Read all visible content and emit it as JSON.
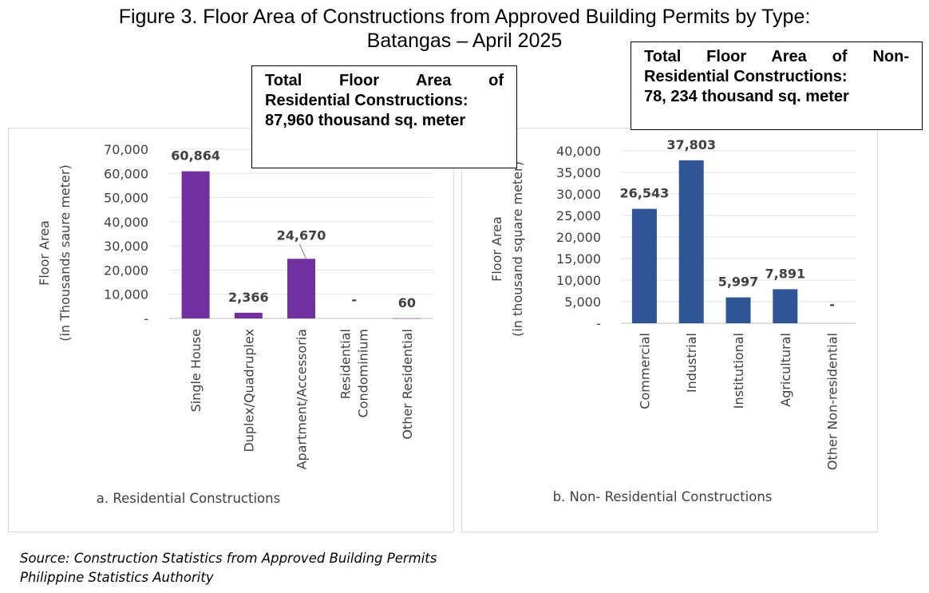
{
  "figure": {
    "title_line1": "Figure 3.  Floor Area of Constructions from Approved Building Permits by Type:",
    "title_line2": "Batangas – April 2025"
  },
  "callouts": {
    "residential": {
      "line1": "Total Floor Area of",
      "line2": "Residential Constructions:",
      "line3": "87,960 thousand sq. meter"
    },
    "nonresidential": {
      "line1": "Total Floor Area of Non-",
      "line2": "Residential Constructions:",
      "line3": "78, 234 thousand sq. meter"
    }
  },
  "source": {
    "line1": "Source: Construction Statistics from Approved Building Permits",
    "line2": "Philippine Statistics Authority"
  },
  "chart_data": [
    {
      "type": "bar",
      "title": "a. Residential Constructions",
      "ylabel_line1": "Floor Area",
      "ylabel_line2": "(in Thousands saure meter)",
      "categories": [
        "Single House",
        "Duplex/Quadruplex",
        "Apartment/Accessoria",
        "Residential Condominium",
        "Other Residential"
      ],
      "category_label_lines": [
        [
          "Single House"
        ],
        [
          "Duplex/Quadruplex"
        ],
        [
          "Apartment/Accessoria"
        ],
        [
          "Residential",
          "Condominium"
        ],
        [
          "Other Residential"
        ]
      ],
      "values": [
        60864,
        2366,
        24670,
        0,
        60
      ],
      "value_labels": [
        "60,864",
        "2,366",
        "24,670",
        "-",
        "60"
      ],
      "yticks": [
        0,
        10000,
        20000,
        30000,
        40000,
        50000,
        60000,
        70000
      ],
      "ytick_labels": [
        "-",
        "10,000",
        "20,000",
        "30,000",
        "40,000",
        "50,000",
        "60,000",
        "70,000"
      ],
      "ylim": [
        0,
        70000
      ],
      "color": "#7030a0",
      "grid": true
    },
    {
      "type": "bar",
      "title": "b. Non- Residential Constructions",
      "ylabel_line1": "Floor Area",
      "ylabel_line2": "(in thousand square meter)",
      "categories": [
        "Commercial",
        "Industrial",
        "Institutional",
        "Agricultural",
        "Other Non-residential"
      ],
      "category_label_lines": [
        [
          "Commercial"
        ],
        [
          "Industrial"
        ],
        [
          "Institutional"
        ],
        [
          "Agricultural"
        ],
        [
          "Other Non-residential"
        ]
      ],
      "values": [
        26543,
        37803,
        5997,
        7891,
        0
      ],
      "value_labels": [
        "26,543",
        "37,803",
        "5,997",
        "7,891",
        "-"
      ],
      "yticks": [
        0,
        5000,
        10000,
        15000,
        20000,
        25000,
        30000,
        35000,
        40000
      ],
      "ytick_labels": [
        "-",
        "5,000",
        "10,000",
        "15,000",
        "20,000",
        "25,000",
        "30,000",
        "35,000",
        "40,000"
      ],
      "ylim": [
        0,
        40000
      ],
      "color": "#2f5597",
      "grid": true
    }
  ]
}
